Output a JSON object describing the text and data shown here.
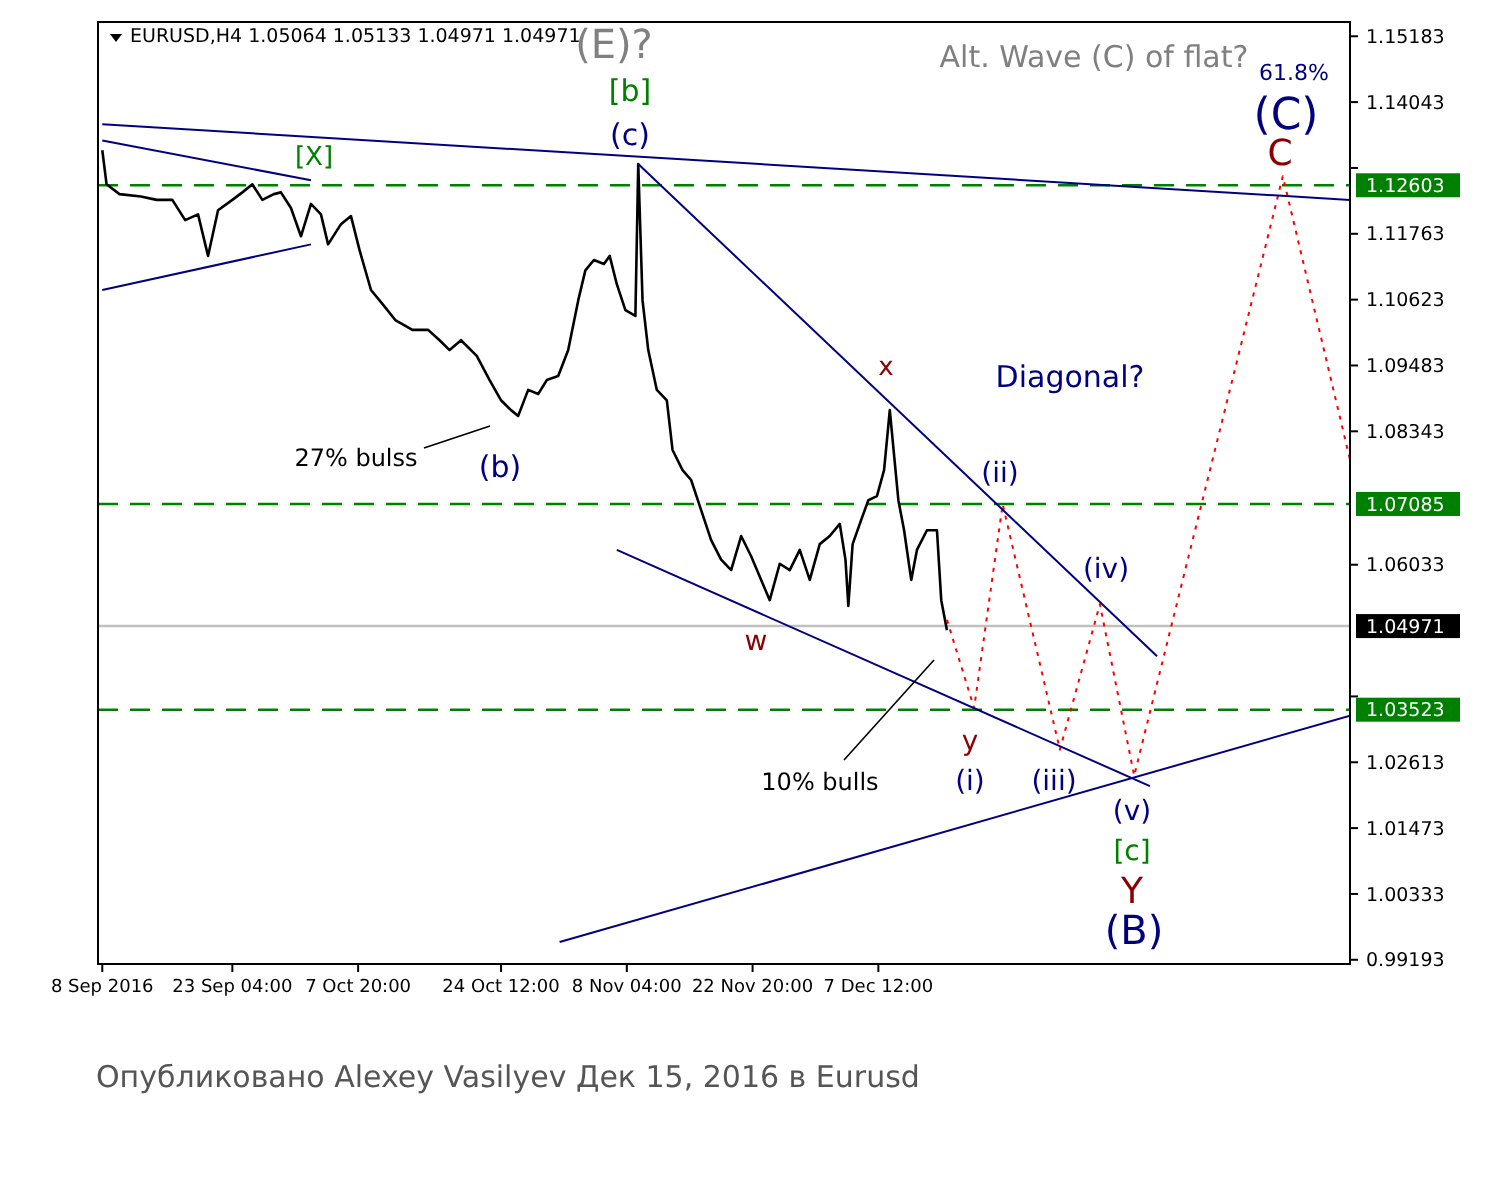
{
  "chart_data": {
    "type": "line",
    "title": "EURUSD,H4  1.05064 1.05133 1.04971 1.04971",
    "xlim": [
      "2016-09-07T12:00",
      "2017-01-31T12:00"
    ],
    "ylim": [
      0.9912,
      1.1543
    ],
    "xticks": [
      {
        "value": "2016-09-08T00:00",
        "label": "8 Sep 2016"
      },
      {
        "value": "2016-09-23T04:00",
        "label": "23 Sep 04:00"
      },
      {
        "value": "2016-10-07T20:00",
        "label": "7 Oct 20:00"
      },
      {
        "value": "2016-10-24T12:00",
        "label": "24 Oct 12:00"
      },
      {
        "value": "2016-11-08T04:00",
        "label": "8 Nov 04:00"
      },
      {
        "value": "2016-11-22T20:00",
        "label": "22 Nov 20:00"
      },
      {
        "value": "2016-12-07T12:00",
        "label": "7 Dec 12:00"
      }
    ],
    "yticks": [
      1.15183,
      1.14043,
      {
        "value": 1.12903,
        "label": null
      },
      1.11763,
      1.10623,
      1.09483,
      1.08343,
      1.06033,
      {
        "value": 1.03753,
        "label": null
      },
      1.02613,
      1.01473,
      1.00333,
      0.99193
    ],
    "series": [
      {
        "color": "#000000",
        "x": [
          "2016-09-08T00:00",
          "2016-09-08T12:00",
          "2016-09-10T00:00",
          "2016-09-12T12:00",
          "2016-09-14T08:00",
          "2016-09-16T04:00",
          "2016-09-17T16:00",
          "2016-09-19T04:00",
          "2016-09-20T08:00",
          "2016-09-21T12:00",
          "2016-09-23T04:00",
          "2016-09-24T08:00",
          "2016-09-25T12:00",
          "2016-09-26T16:00",
          "2016-09-28T00:00",
          "2016-09-28T20:00",
          "2016-09-30T00:00",
          "2016-10-01T04:00",
          "2016-10-02T08:00",
          "2016-10-03T12:00",
          "2016-10-04T08:00",
          "2016-10-05T20:00",
          "2016-10-07T00:00",
          "2016-10-08T00:00",
          "2016-10-09T08:00",
          "2016-10-10T16:00",
          "2016-10-12T04:00",
          "2016-10-14T04:00",
          "2016-10-16T00:00",
          "2016-10-17T08:00",
          "2016-10-18T12:00",
          "2016-10-19T20:00",
          "2016-10-21T16:00",
          "2016-10-23T04:00",
          "2016-10-24T12:00",
          "2016-10-25T16:00",
          "2016-10-26T12:00",
          "2016-10-27T16:00",
          "2016-10-28T20:00",
          "2016-10-29T20:00",
          "2016-10-31T04:00",
          "2016-11-01T08:00",
          "2016-11-02T12:00",
          "2016-11-03T08:00",
          "2016-11-04T08:00",
          "2016-11-05T12:00",
          "2016-11-06T04:00",
          "2016-11-07T00:00",
          "2016-11-08T00:00",
          "2016-11-09T04:00",
          "2016-11-09T12:00",
          "2016-11-10T00:00",
          "2016-11-10T16:00",
          "2016-11-11T16:00",
          "2016-11-12T20:00",
          "2016-11-13T12:00",
          "2016-11-14T16:00",
          "2016-11-15T16:00",
          "2016-11-16T20:00",
          "2016-11-18T00:00",
          "2016-11-19T04:00",
          "2016-11-20T08:00",
          "2016-11-21T12:00",
          "2016-11-22T16:00",
          "2016-11-23T20:00",
          "2016-11-24T20:00",
          "2016-11-26T00:00",
          "2016-11-27T04:00",
          "2016-11-28T08:00",
          "2016-11-29T12:00",
          "2016-11-30T16:00",
          "2016-12-01T20:00",
          "2016-12-03T00:00",
          "2016-12-03T16:00",
          "2016-12-04T00:00",
          "2016-12-04T12:00",
          "2016-12-05T12:00",
          "2016-12-06T08:00",
          "2016-12-07T08:00",
          "2016-12-08T04:00",
          "2016-12-08T20:00",
          "2016-12-09T20:00",
          "2016-12-10T12:00",
          "2016-12-11T08:00",
          "2016-12-12T00:00",
          "2016-12-13T04:00",
          "2016-12-14T08:00",
          "2016-12-14T20:00",
          "2016-12-15T12:00"
        ],
        "values": [
          1.1321,
          1.1262,
          1.1245,
          1.1241,
          1.1235,
          1.1235,
          1.12,
          1.121,
          1.1138,
          1.1217,
          1.1235,
          1.1248,
          1.1262,
          1.1235,
          1.1245,
          1.1248,
          1.1221,
          1.1172,
          1.1228,
          1.121,
          1.1158,
          1.1193,
          1.1207,
          1.1148,
          1.1079,
          1.1055,
          1.1027,
          1.101,
          1.101,
          1.0992,
          1.0975,
          1.0992,
          1.0965,
          1.0923,
          1.0888,
          1.0871,
          1.0861,
          1.0906,
          1.0899,
          1.0923,
          1.093,
          1.0975,
          1.1061,
          1.1113,
          1.1131,
          1.1124,
          1.1138,
          1.1089,
          1.1044,
          1.1034,
          1.1297,
          1.1061,
          1.0975,
          1.0906,
          1.0888,
          1.0802,
          1.0767,
          1.075,
          1.0698,
          1.0646,
          1.0612,
          1.0594,
          1.0653,
          1.0618,
          1.0577,
          1.0542,
          1.0605,
          1.0594,
          1.0629,
          1.0577,
          1.0639,
          1.0653,
          1.0674,
          1.0612,
          1.0532,
          1.0639,
          1.0681,
          1.0715,
          1.0722,
          1.0767,
          1.0871,
          1.0715,
          1.0663,
          1.0577,
          1.0629,
          1.0663,
          1.0663,
          1.0542,
          1.049
        ]
      },
      {
        "color": "#ff0000",
        "line_style": "dotted",
        "x": [
          "2016-12-15T12:00",
          "2016-12-18T16:00",
          "2016-12-22T00:00",
          "2016-12-28T16:00",
          "2017-01-02T08:00",
          "2017-01-06T08:00",
          "2017-01-23T16:00",
          "2017-01-31T12:00"
        ],
        "values": [
          1.0508,
          1.0355,
          1.0708,
          1.0283,
          1.0535,
          1.0238,
          1.1276,
          1.0785
        ]
      },
      {
        "color": "#000080",
        "x": [
          "2016-09-08T00:00",
          "2017-01-31T12:00"
        ],
        "values": [
          1.1366,
          1.1235
        ]
      },
      {
        "color": "#000080",
        "x": [
          "2016-09-08T00:00",
          "2016-10-02T08:00"
        ],
        "values": [
          1.1338,
          1.1269
        ]
      },
      {
        "color": "#000080",
        "x": [
          "2016-09-08T00:00",
          "2016-10-02T08:00"
        ],
        "values": [
          1.1079,
          1.1158
        ]
      },
      {
        "color": "#000080",
        "x": [
          "2016-11-09T12:00",
          "2017-01-09T00:00"
        ],
        "values": [
          1.1297,
          1.0445
        ]
      },
      {
        "color": "#000080",
        "x": [
          "2016-11-07T00:00",
          "2017-01-08T04:00"
        ],
        "values": [
          1.0629,
          1.022
        ]
      },
      {
        "color": "#000080",
        "x": [
          "2016-10-31T08:00",
          "2017-01-31T12:00"
        ],
        "values": [
          0.995,
          1.0342
        ]
      }
    ],
    "ref_lines": [
      {
        "axis": "y",
        "value": 1.12603,
        "label": "1.12603",
        "color": "#008000",
        "line_style": "dashed"
      },
      {
        "axis": "y",
        "value": 1.07085,
        "label": "1.07085",
        "color": "#008000",
        "line_style": "dashed"
      },
      {
        "axis": "y",
        "value": 1.03523,
        "label": "1.03523",
        "color": "#008000",
        "line_style": "dashed"
      },
      {
        "axis": "y",
        "value": 1.04971,
        "label": "1.04971",
        "color": "#c0c0c0",
        "line_style": "solid"
      }
    ],
    "annotations": [
      "27% bulss",
      "10% bulls",
      "(E)?",
      "[b]",
      "(c)",
      "[X]",
      "(b)",
      "x",
      "Diagonal?",
      "(ii)",
      "(iv)",
      "w",
      "y",
      "(i)",
      "(iii)",
      "(v)",
      "[c]",
      "Y",
      "(B)",
      "61.8%",
      "(C)",
      "C",
      "Alt. Wave (C) of flat?",
      "Опубликовано Alexey Vasilyev Дек 15, 2016 в Eurusd"
    ]
  }
}
